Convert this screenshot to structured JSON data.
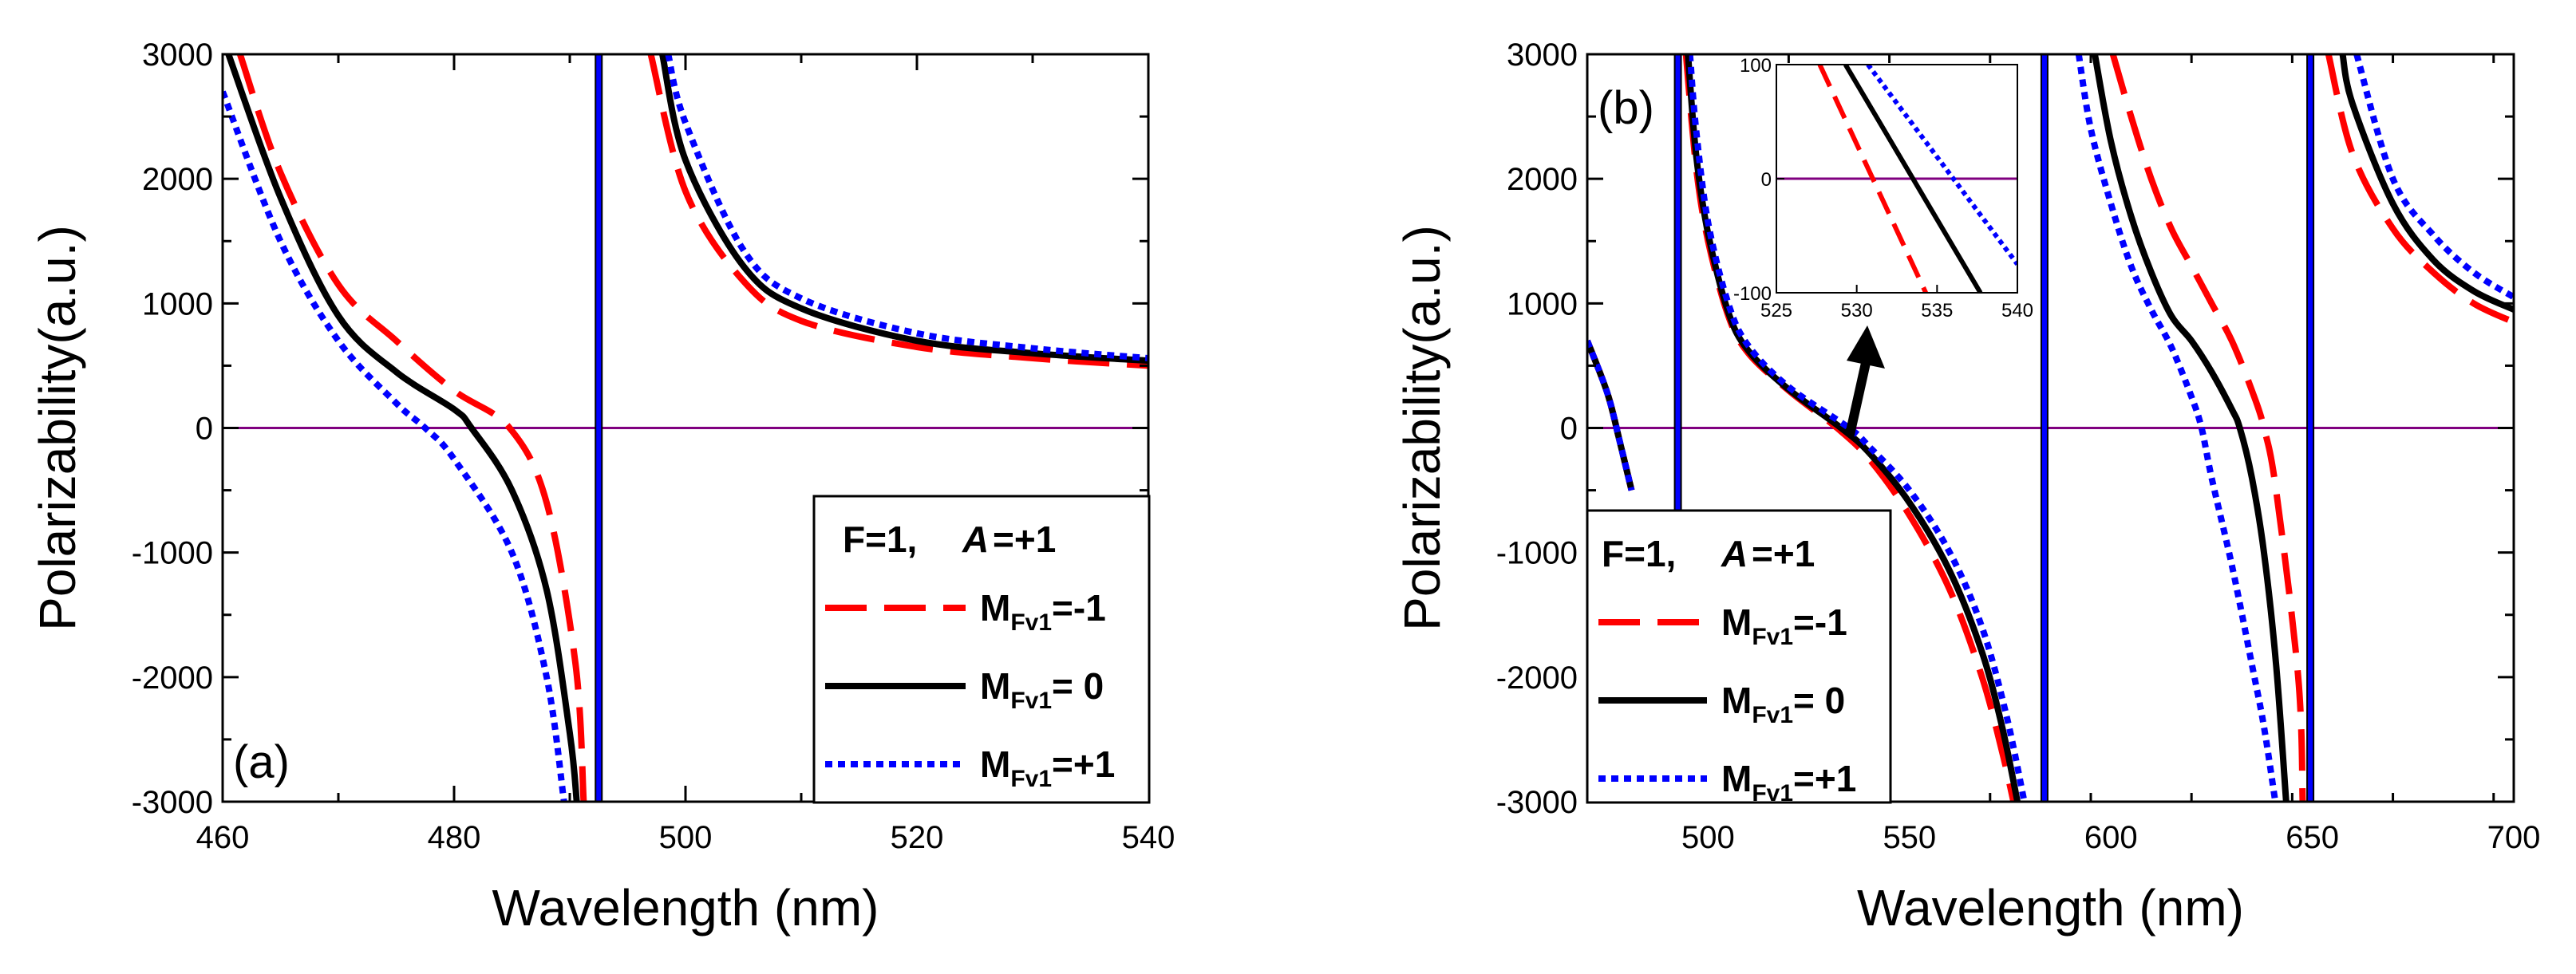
{
  "figure": "Polarizability vs wavelength, two panels",
  "chart_data": [
    {
      "type": "line",
      "panel_label": "(a)",
      "xlabel": "Wavelength (nm)",
      "ylabel": "Polarizability(a.u.)",
      "xlim": [
        460,
        540
      ],
      "ylim": [
        -3000,
        3000
      ],
      "xticks": [
        460,
        480,
        500,
        520,
        540
      ],
      "yticks": [
        -3000,
        -2000,
        -1000,
        0,
        1000,
        2000,
        3000
      ],
      "resonances_nm": [
        492.5
      ],
      "zero_line_color": "#800080",
      "legend": {
        "title_left": "F=1,",
        "title_right": "=+1",
        "title_symbol": "A",
        "placement": "lower-right"
      },
      "series": [
        {
          "name": "M_Fv1=-1",
          "label_main": "M",
          "label_sub": "Fv1",
          "label_val": "=-1",
          "color": "#ff0000",
          "style": "dashed",
          "x": [
            461.5,
            465,
            470,
            475,
            480,
            484.8,
            488,
            490.5,
            491.2,
            497,
            500,
            505,
            510,
            520,
            530,
            540
          ],
          "y": [
            3000,
            2050,
            1150,
            700,
            300,
            0,
            -600,
            -1900,
            -3000,
            3000,
            1900,
            1180,
            860,
            650,
            560,
            500
          ]
        },
        {
          "name": "M_Fv1=0",
          "label_main": "M",
          "label_sub": "Fv1",
          "label_val": "= 0",
          "color": "#000000",
          "style": "solid",
          "x": [
            460.5,
            465,
            470,
            475,
            480,
            481.5,
            485,
            488,
            490,
            490.6,
            498,
            500,
            505,
            510,
            520,
            530,
            540
          ],
          "y": [
            3000,
            1850,
            900,
            450,
            150,
            0,
            -500,
            -1300,
            -2450,
            -3000,
            3000,
            2150,
            1300,
            960,
            700,
            600,
            540
          ]
        },
        {
          "name": "M_Fv1=+1",
          "label_main": "M",
          "label_sub": "Fv1",
          "label_val": "=+1",
          "color": "#0000ff",
          "style": "dotted",
          "x": [
            460,
            465,
            470,
            475,
            477.5,
            480,
            485,
            488,
            489.5,
            498.5,
            500,
            505,
            510,
            520,
            530,
            540
          ],
          "y": [
            2700,
            1500,
            700,
            200,
            0,
            -250,
            -1000,
            -2000,
            -3000,
            3000,
            2450,
            1430,
            1040,
            760,
            640,
            560
          ]
        }
      ]
    },
    {
      "type": "line",
      "panel_label": "(b)",
      "xlabel": "Wavelength (nm)",
      "ylabel": "Polarizability(a.u.)",
      "xlim": [
        470,
        700
      ],
      "ylim": [
        -3000,
        3000
      ],
      "xticks": [
        500,
        550,
        600,
        650,
        700
      ],
      "yticks": [
        -3000,
        -2000,
        -1000,
        0,
        1000,
        2000,
        3000
      ],
      "resonances_nm": [
        492.5,
        583.5,
        649.5
      ],
      "zero_line_color": "#800080",
      "legend": {
        "title_left": "F=1,",
        "title_right": "=+1",
        "title_symbol": "A",
        "placement": "lower-left"
      },
      "series": [
        {
          "name": "M_Fv1=-1",
          "label_main": "M",
          "label_sub": "Fv1",
          "label_val": "=-1",
          "color": "#ff0000",
          "style": "dashed",
          "x": [
            470,
            475,
            478,
            481,
            494.5,
            497,
            500,
            505,
            510,
            520,
            532,
            540,
            550,
            560,
            568,
            573,
            575.8,
            600.5,
            605,
            610,
            615,
            620,
            625,
            630,
            635,
            638,
            641,
            646.5,
            647.6,
            654,
            660,
            670,
            680,
            690,
            700
          ],
          "y": [
            700,
            280,
            -100,
            -500,
            3000,
            2100,
            1500,
            900,
            600,
            300,
            0,
            -250,
            -700,
            -1300,
            -2000,
            -2600,
            -3000,
            3000,
            2500,
            2000,
            1600,
            1300,
            1000,
            700,
            300,
            0,
            -500,
            -2000,
            -3000,
            3000,
            2200,
            1600,
            1250,
            1000,
            850
          ]
        },
        {
          "name": "M_Fv1=0",
          "label_main": "M",
          "label_sub": "Fv1",
          "label_val": "= 0",
          "color": "#000000",
          "style": "solid",
          "x": [
            470,
            475,
            478,
            481,
            495,
            497,
            500,
            505,
            510,
            520,
            533,
            540,
            550,
            560,
            568,
            573,
            576.8,
            596,
            600,
            605,
            610,
            615,
            620,
            625,
            630,
            632,
            635,
            638,
            641,
            643.5,
            657.5,
            660,
            670,
            680,
            690,
            700
          ],
          "y": [
            700,
            280,
            -100,
            -500,
            3000,
            2200,
            1560,
            930,
            620,
            310,
            0,
            -200,
            -600,
            -1150,
            -1800,
            -2400,
            -3000,
            3000,
            2300,
            1700,
            1250,
            900,
            700,
            450,
            150,
            0,
            -400,
            -1000,
            -1900,
            -3000,
            3000,
            2600,
            1800,
            1350,
            1100,
            950
          ]
        },
        {
          "name": "M_Fv1=+1",
          "label_main": "M",
          "label_sub": "Fv1",
          "label_val": "=+1",
          "color": "#0000ff",
          "style": "dotted",
          "x": [
            470,
            475,
            478,
            481,
            495.5,
            497,
            500,
            505,
            510,
            520,
            535,
            540,
            550,
            560,
            568,
            574,
            578.5,
            592,
            595,
            600,
            605,
            610,
            615,
            620,
            622.5,
            625,
            630,
            635,
            638,
            640.8,
            661,
            670,
            680,
            690,
            700
          ],
          "y": [
            700,
            280,
            -100,
            -500,
            3000,
            2400,
            1650,
            1000,
            660,
            330,
            0,
            -150,
            -500,
            -1000,
            -1600,
            -2300,
            -3000,
            3000,
            2400,
            1800,
            1300,
            950,
            650,
            250,
            0,
            -400,
            -1100,
            -1900,
            -2400,
            -3000,
            3000,
            2000,
            1550,
            1250,
            1050
          ]
        }
      ],
      "inset": {
        "xlim": [
          525,
          540
        ],
        "ylim": [
          -100,
          100
        ],
        "xticks": [
          525,
          530,
          535,
          540
        ],
        "yticks": [
          -100,
          0,
          100
        ],
        "pointer": "arrow from main curve crossing to inset",
        "series": [
          {
            "name": "M_Fv1=-1",
            "color": "#ff0000",
            "style": "dashed",
            "x": [
              527.7,
              534.3
            ],
            "y": [
              100,
              -100
            ]
          },
          {
            "name": "M_Fv1=0",
            "color": "#000000",
            "style": "solid",
            "x": [
              529.3,
              537.7
            ],
            "y": [
              100,
              -100
            ]
          },
          {
            "name": "M_Fv1=+1",
            "color": "#0000ff",
            "style": "dotted",
            "x": [
              530.7,
              540
            ],
            "y": [
              100,
              -75
            ]
          }
        ]
      }
    }
  ]
}
